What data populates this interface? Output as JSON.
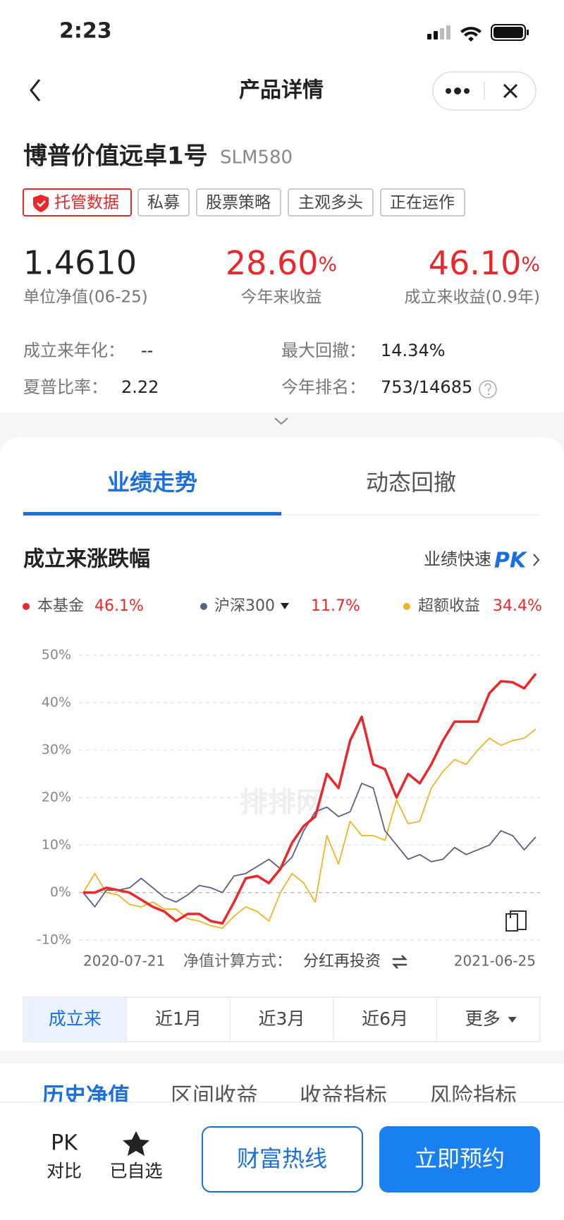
{
  "status_bar": {
    "time": "2:23"
  },
  "nav": {
    "title": "产品详情"
  },
  "fund": {
    "name": "博普价值远卓1号",
    "code": "SLM580",
    "tags": [
      "托管数据",
      "私募",
      "股票策略",
      "主观多头",
      "正在运作"
    ]
  },
  "metrics": [
    {
      "value": "1.4610",
      "label": "单位净值(06-25)"
    },
    {
      "value": "28.60",
      "unit": "%",
      "label": "今年来收益"
    },
    {
      "value": "46.10",
      "unit": "%",
      "label": "成立来收益(0.9年)"
    }
  ],
  "stats": [
    {
      "label": "成立来年化：",
      "value": "--"
    },
    {
      "label": "最大回撤：",
      "value": "14.34%"
    },
    {
      "label": "夏普比率：",
      "value": "2.22"
    },
    {
      "label": "今年排名：",
      "value": "753/14685"
    }
  ],
  "tabs": [
    "业绩走势",
    "动态回撤"
  ],
  "section": {
    "title": "成立来涨跌幅",
    "link": "业绩快速",
    "link_badge": "PK"
  },
  "chart_data": {
    "type": "line",
    "watermark": "排排网",
    "method_label": "净值计算方式：",
    "method_value": "分红再投资",
    "categories": [
      "2020-07-21",
      null,
      null,
      null,
      null,
      null,
      null,
      null,
      null,
      null,
      null,
      null,
      null,
      null,
      null,
      null,
      null,
      null,
      null,
      null,
      null,
      null,
      null,
      null,
      null,
      null,
      null,
      null,
      null,
      null,
      null,
      null,
      null,
      null,
      null,
      null,
      null,
      null,
      null,
      "2021-06-25"
    ],
    "series": [
      {
        "name": "本基金",
        "total_label": "46.1%",
        "color": "#e8282b",
        "values": [
          0,
          0,
          1,
          0.5,
          0,
          -1.5,
          -3,
          -4,
          -6,
          -4.5,
          -4.5,
          -6,
          -6.5,
          -2,
          3,
          3.5,
          2,
          5,
          10.5,
          14,
          16,
          25,
          22,
          32,
          37,
          27,
          26,
          20,
          25,
          23,
          27,
          32,
          36,
          36,
          36,
          42,
          44.5,
          44.3,
          43,
          46.1
        ]
      },
      {
        "name": "沪深300",
        "total_label": "11.7%",
        "color": "#5c6080",
        "values": [
          0,
          -3,
          0.5,
          0.5,
          1,
          3,
          1,
          -1,
          -2,
          -0.5,
          1.5,
          1,
          0,
          3.5,
          4,
          5.5,
          7,
          5,
          7.5,
          13,
          17,
          18,
          16,
          17,
          23,
          22,
          13,
          10,
          7,
          8,
          6.5,
          7,
          9.5,
          8,
          9,
          10,
          13,
          12,
          9,
          11.7
        ]
      },
      {
        "name": "超额收益",
        "total_label": "34.4%",
        "color": "#f0b323",
        "values": [
          0,
          4,
          0,
          -0.5,
          -2.5,
          -3,
          -2,
          -3.5,
          -3.5,
          -5.5,
          -6,
          -7,
          -7.5,
          -5,
          -3,
          -4,
          -6,
          0,
          4,
          2,
          -2,
          12,
          6,
          15,
          12,
          12,
          11,
          19.5,
          14.5,
          15,
          22,
          25.5,
          28,
          27,
          30,
          32.5,
          31,
          32,
          32.5,
          34.4
        ]
      }
    ],
    "ylim": [
      -10,
      50
    ],
    "yticks": [
      {
        "value": -10,
        "label": "-10%"
      },
      {
        "value": 0,
        "label": "0%"
      },
      {
        "value": 10,
        "label": "10%"
      },
      {
        "value": 20,
        "label": "20%"
      },
      {
        "value": 30,
        "label": "30%"
      },
      {
        "value": 40,
        "label": "40%"
      },
      {
        "value": 50,
        "label": "50%"
      }
    ],
    "grid": true
  },
  "periods": [
    "成立来",
    "近1月",
    "近3月",
    "近6月",
    "更多"
  ],
  "lower_tabs": [
    "历史净值",
    "区间收益",
    "收益指标",
    "风险指标"
  ],
  "bottom_bar": {
    "compare_icon": "PK",
    "compare": "对比",
    "watch": "已自选",
    "hotline": "财富热线",
    "reserve": "立即预约"
  }
}
